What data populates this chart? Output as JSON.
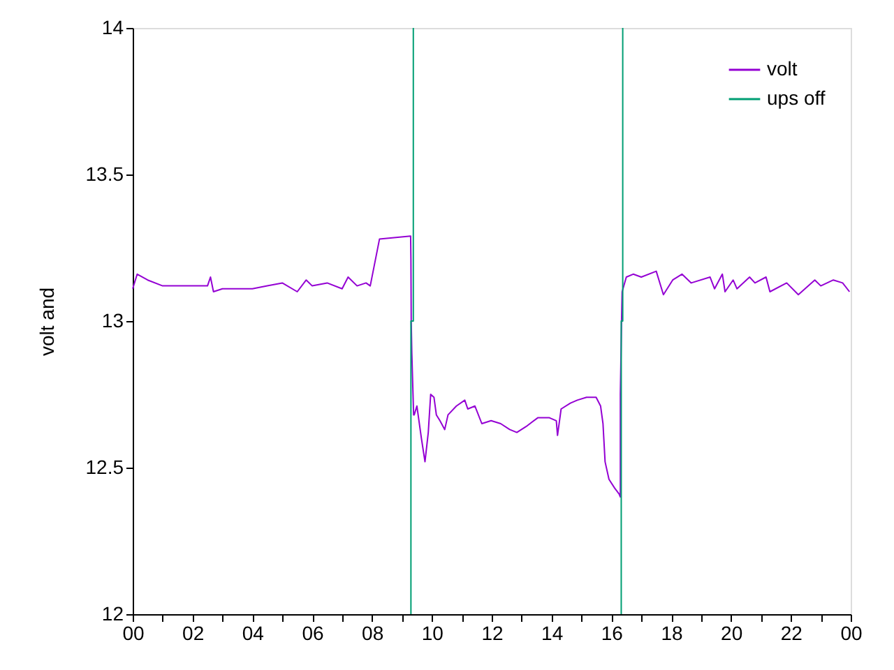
{
  "chart_data": {
    "type": "line",
    "ylabel": "volt and",
    "xlim": [
      0,
      24
    ],
    "ylim": [
      12,
      14
    ],
    "xticks": [
      {
        "value": 0,
        "label": "00"
      },
      {
        "value": 1,
        "label": null
      },
      {
        "value": 2,
        "label": "02"
      },
      {
        "value": 3,
        "label": null
      },
      {
        "value": 4,
        "label": "04"
      },
      {
        "value": 5,
        "label": null
      },
      {
        "value": 6,
        "label": "06"
      },
      {
        "value": 7,
        "label": null
      },
      {
        "value": 8,
        "label": "08"
      },
      {
        "value": 9,
        "label": null
      },
      {
        "value": 10,
        "label": "10"
      },
      {
        "value": 11,
        "label": null
      },
      {
        "value": 12,
        "label": "12"
      },
      {
        "value": 13,
        "label": null
      },
      {
        "value": 14,
        "label": "14"
      },
      {
        "value": 15,
        "label": null
      },
      {
        "value": 16,
        "label": "16"
      },
      {
        "value": 17,
        "label": null
      },
      {
        "value": 18,
        "label": "18"
      },
      {
        "value": 19,
        "label": null
      },
      {
        "value": 20,
        "label": "20"
      },
      {
        "value": 21,
        "label": null
      },
      {
        "value": 22,
        "label": "22"
      },
      {
        "value": 23,
        "label": null
      },
      {
        "value": 24,
        "label": "00"
      }
    ],
    "yticks": [
      12,
      12.5,
      13,
      13.5,
      14
    ],
    "legend": "top right",
    "grid": false,
    "series": [
      {
        "name": "volt",
        "color": "#9400d3",
        "x": [
          0,
          0.15,
          0.5,
          1.0,
          2.0,
          2.5,
          2.6,
          2.7,
          3.0,
          4.0,
          4.5,
          5.0,
          5.5,
          5.8,
          6.0,
          6.5,
          7.0,
          7.2,
          7.5,
          7.8,
          7.94,
          8.25,
          9.29,
          9.3,
          9.31,
          9.33,
          9.39,
          9.41,
          9.5,
          9.65,
          9.77,
          9.88,
          9.96,
          10.07,
          10.15,
          10.27,
          10.43,
          10.54,
          10.82,
          11.1,
          11.2,
          11.44,
          11.67,
          11.98,
          12.3,
          12.6,
          12.84,
          13.15,
          13.54,
          13.93,
          14.16,
          14.2,
          14.32,
          14.63,
          14.86,
          15.17,
          15.49,
          15.64,
          15.72,
          15.79,
          15.92,
          16.11,
          16.26,
          16.3,
          16.3,
          16.34,
          16.36,
          16.5,
          16.73,
          17.0,
          17.5,
          17.74,
          18.05,
          18.36,
          18.67,
          19.3,
          19.45,
          19.71,
          19.8,
          20.07,
          20.2,
          20.62,
          20.8,
          21.17,
          21.3,
          21.86,
          22.25,
          22.8,
          23.0,
          23.42,
          23.73,
          23.96
        ],
        "values": [
          13.11,
          13.16,
          13.14,
          13.12,
          13.12,
          13.12,
          13.15,
          13.1,
          13.11,
          13.11,
          13.12,
          13.13,
          13.1,
          13.14,
          13.12,
          13.13,
          13.11,
          13.15,
          13.12,
          13.13,
          13.12,
          13.28,
          13.29,
          13.21,
          13.0,
          12.89,
          12.68,
          12.68,
          12.71,
          12.6,
          12.52,
          12.62,
          12.75,
          12.74,
          12.68,
          12.66,
          12.63,
          12.68,
          12.71,
          12.73,
          12.7,
          12.71,
          12.65,
          12.66,
          12.65,
          12.63,
          12.62,
          12.64,
          12.67,
          12.67,
          12.66,
          12.61,
          12.7,
          12.72,
          12.73,
          12.74,
          12.74,
          12.71,
          12.65,
          12.52,
          12.46,
          12.43,
          12.41,
          12.4,
          12.75,
          13.0,
          13.1,
          13.15,
          13.16,
          13.15,
          13.17,
          13.09,
          13.14,
          13.16,
          13.13,
          13.15,
          13.11,
          13.16,
          13.1,
          13.14,
          13.11,
          13.15,
          13.13,
          13.15,
          13.1,
          13.13,
          13.09,
          13.14,
          13.12,
          13.14,
          13.13,
          13.1
        ]
      },
      {
        "name": "ups off",
        "color": "#009e73",
        "x": [
          9.3,
          9.3,
          9.38,
          9.38,
          12,
          16.33,
          16.33,
          16.38,
          16.38
        ],
        "values": [
          12,
          13,
          13,
          14,
          null,
          12,
          13,
          13,
          14
        ]
      }
    ]
  }
}
